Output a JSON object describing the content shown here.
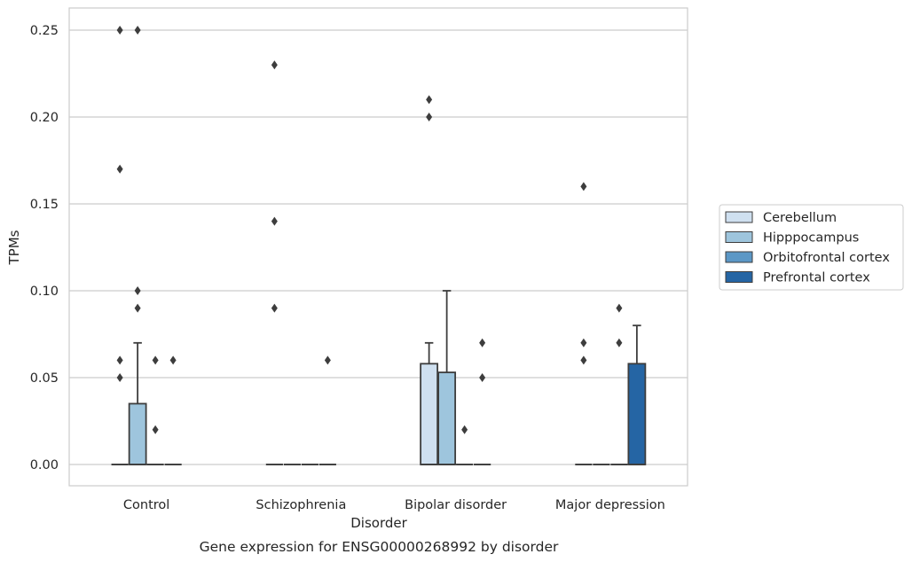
{
  "chart_data": {
    "type": "box",
    "xlabel": "Disorder",
    "ylabel": "TPMs",
    "caption": "Gene expression for ENSG00000268992 by disorder",
    "ylim": [
      -0.012,
      0.263
    ],
    "yticks": [
      "0.00",
      "0.05",
      "0.10",
      "0.15",
      "0.20",
      "0.25"
    ],
    "ytick_values": [
      0,
      0.05,
      0.1,
      0.15,
      0.2,
      0.25
    ],
    "grid": true,
    "legend_position": "right",
    "categories": [
      "Control",
      "Schizophrenia",
      "Bipolar disorder",
      "Major depression"
    ],
    "series": [
      {
        "name": "Cerebellum",
        "color": "#cfe0f0",
        "boxes": [
          {
            "q1": 0,
            "median": 0,
            "q3": 0,
            "whisker_low": 0,
            "whisker_high": 0,
            "outliers": [
              0.05,
              0.06,
              0.17,
              0.25
            ]
          },
          {
            "q1": 0,
            "median": 0,
            "q3": 0,
            "whisker_low": 0,
            "whisker_high": 0,
            "outliers": [
              0.09,
              0.14,
              0.23
            ]
          },
          {
            "q1": 0,
            "median": 0,
            "q3": 0.058,
            "whisker_low": 0,
            "whisker_high": 0.07,
            "outliers": [
              0.2,
              0.21
            ]
          },
          {
            "q1": 0,
            "median": 0,
            "q3": 0,
            "whisker_low": 0,
            "whisker_high": 0,
            "outliers": [
              0.06,
              0.07,
              0.16
            ]
          }
        ]
      },
      {
        "name": "Hipppocampus",
        "color": "#9ec5dd",
        "boxes": [
          {
            "q1": 0,
            "median": 0,
            "q3": 0.035,
            "whisker_low": 0,
            "whisker_high": 0.07,
            "outliers": [
              0.09,
              0.1,
              0.25
            ]
          },
          {
            "q1": 0,
            "median": 0,
            "q3": 0,
            "whisker_low": 0,
            "whisker_high": 0,
            "outliers": []
          },
          {
            "q1": 0,
            "median": 0,
            "q3": 0.053,
            "whisker_low": 0,
            "whisker_high": 0.1,
            "outliers": []
          },
          {
            "q1": 0,
            "median": 0,
            "q3": 0,
            "whisker_low": 0,
            "whisker_high": 0,
            "outliers": []
          }
        ]
      },
      {
        "name": "Orbitofrontal cortex",
        "color": "#5b97c6",
        "boxes": [
          {
            "q1": 0,
            "median": 0,
            "q3": 0,
            "whisker_low": 0,
            "whisker_high": 0,
            "outliers": [
              0.02,
              0.06
            ]
          },
          {
            "q1": 0,
            "median": 0,
            "q3": 0,
            "whisker_low": 0,
            "whisker_high": 0,
            "outliers": []
          },
          {
            "q1": 0,
            "median": 0,
            "q3": 0,
            "whisker_low": 0,
            "whisker_high": 0,
            "outliers": [
              0.02
            ]
          },
          {
            "q1": 0,
            "median": 0,
            "q3": 0,
            "whisker_low": 0,
            "whisker_high": 0,
            "outliers": [
              0.07,
              0.09
            ]
          }
        ]
      },
      {
        "name": "Prefrontal cortex",
        "color": "#2565a4",
        "boxes": [
          {
            "q1": 0,
            "median": 0,
            "q3": 0,
            "whisker_low": 0,
            "whisker_high": 0,
            "outliers": [
              0.06
            ]
          },
          {
            "q1": 0,
            "median": 0,
            "q3": 0,
            "whisker_low": 0,
            "whisker_high": 0,
            "outliers": [
              0.06
            ]
          },
          {
            "q1": 0,
            "median": 0,
            "q3": 0,
            "whisker_low": 0,
            "whisker_high": 0,
            "outliers": [
              0.05,
              0.07
            ]
          },
          {
            "q1": 0,
            "median": 0,
            "q3": 0.058,
            "whisker_low": 0,
            "whisker_high": 0.08,
            "outliers": []
          }
        ]
      }
    ]
  }
}
